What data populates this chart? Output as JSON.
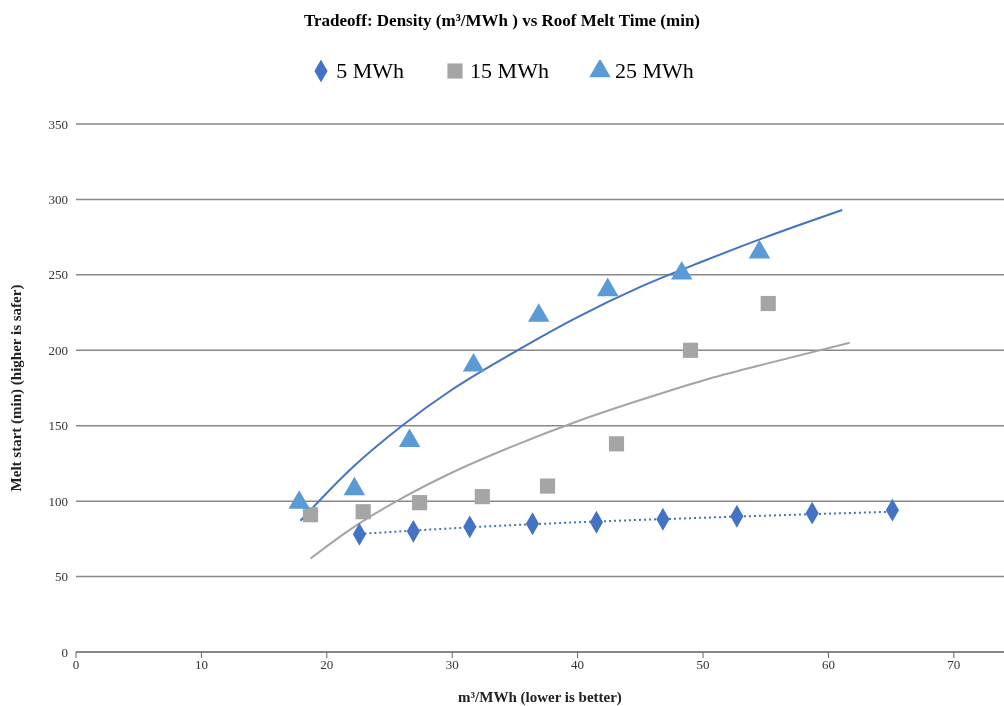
{
  "chart_data": {
    "type": "scatter",
    "title": "Tradeoff: Density (m³/MWh ) vs Roof Melt Time (min)",
    "xlabel": "m³/MWh (lower is better)",
    "ylabel": "Melt start (min) (higher is safer)",
    "xlim": [
      0,
      74
    ],
    "xticks": [
      0,
      10,
      20,
      30,
      40,
      50,
      60,
      70
    ],
    "ylim": [
      0,
      350
    ],
    "yticks": [
      0,
      50,
      100,
      150,
      200,
      250,
      300,
      350
    ],
    "grid": "y",
    "legend": "top",
    "series": [
      {
        "name": "5 MWh",
        "marker": "diamond",
        "color": "#4472c4",
        "x": [
          22.6,
          26.9,
          31.4,
          36.4,
          41.5,
          46.8,
          52.7,
          58.7,
          65.1
        ],
        "values": [
          78,
          80,
          83,
          85,
          86,
          88,
          90,
          92,
          94
        ]
      },
      {
        "name": "15 MWh",
        "marker": "square",
        "color": "#a5a5a5",
        "x": [
          18.7,
          22.9,
          27.4,
          32.4,
          37.6,
          43.1,
          49,
          55.2
        ],
        "values": [
          91,
          93,
          99,
          103,
          110,
          138,
          200,
          231
        ]
      },
      {
        "name": "25 MWh",
        "marker": "triangle",
        "color": "#5b9bd5",
        "x": [
          17.8,
          22.2,
          26.6,
          31.7,
          36.9,
          42.4,
          48.3,
          54.5
        ],
        "values": [
          99,
          108,
          140,
          190,
          223,
          240,
          251,
          265
        ]
      },
      {
        "type": "line",
        "line_style": "solid",
        "color": "#4472c4",
        "x": [
          17.9,
          22,
          26,
          30,
          35,
          40,
          45,
          50,
          55,
          61.1
        ],
        "values": [
          87,
          122,
          150,
          174,
          199,
          222,
          242,
          259,
          275,
          293
        ]
      },
      {
        "type": "line",
        "line_style": "solid",
        "color": "#a5a5a5",
        "x": [
          18.7,
          22,
          26,
          30,
          35,
          40,
          45,
          50,
          55,
          61.7
        ],
        "values": [
          62,
          82,
          102,
          119,
          137,
          153,
          167,
          180,
          191,
          205
        ]
      },
      {
        "type": "line",
        "line_style": "dotted",
        "color": "#4472c4",
        "x": [
          22.2,
          30,
          40,
          50,
          65.1
        ],
        "values": [
          78,
          82,
          86,
          89,
          93
        ]
      }
    ]
  }
}
